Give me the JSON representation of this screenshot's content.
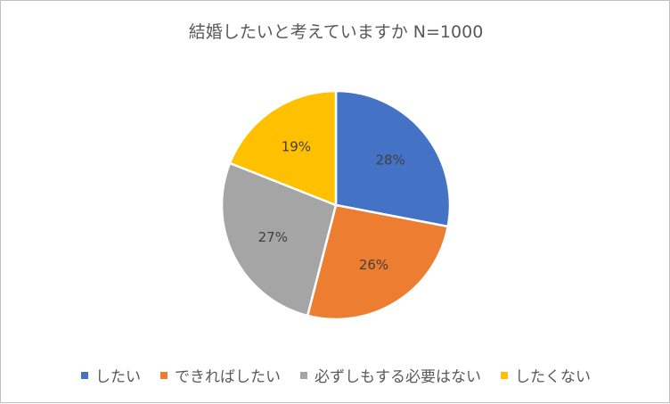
{
  "chart_data": {
    "type": "pie",
    "title": "結婚したいと考えていますか N=1000",
    "categories": [
      "したい",
      "できればしたい",
      "必ずしもする必要はない",
      "したくない"
    ],
    "values": [
      28,
      26,
      27,
      19
    ],
    "value_labels": [
      "28%",
      "26%",
      "27%",
      "19%"
    ],
    "colors": [
      "#4472C4",
      "#ED7D31",
      "#A5A5A5",
      "#FFC000"
    ],
    "legend_position": "bottom",
    "start_angle": "12 o'clock, clockwise"
  }
}
